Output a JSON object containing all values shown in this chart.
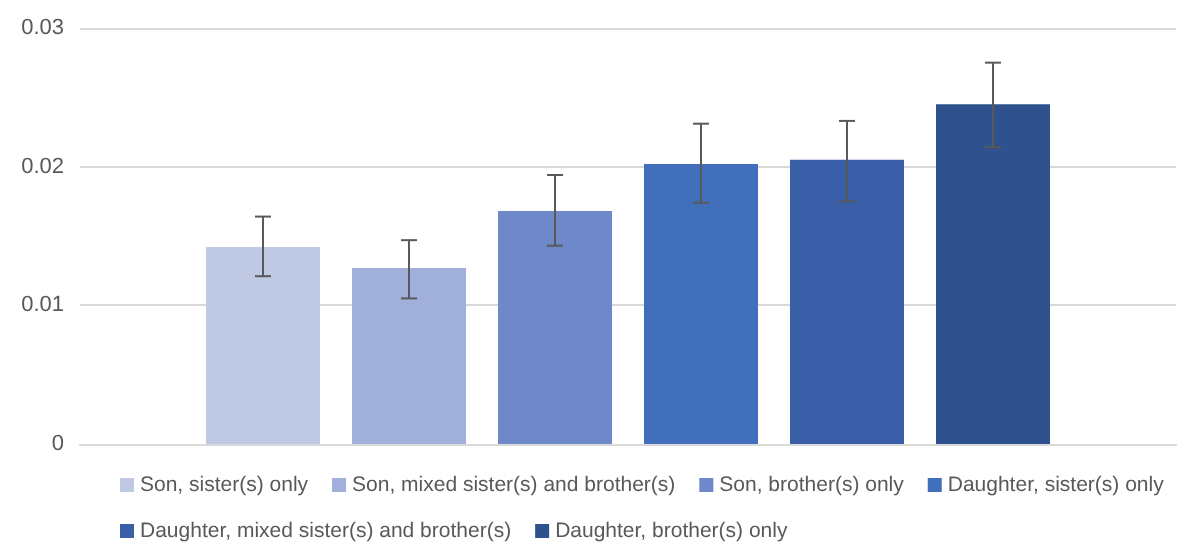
{
  "chart_data": {
    "type": "bar",
    "categories": [
      null
    ],
    "series": [
      {
        "name": "Son, sister(s) only",
        "color": "#bfc9e4",
        "values": [
          0.0142
        ],
        "errors": [
          [
            0.0121,
            0.0164
          ]
        ]
      },
      {
        "name": "Son, mixed sister(s) and brother(s)",
        "color": "#a0b0da",
        "values": [
          0.0127
        ],
        "errors": [
          [
            0.0105,
            0.0147
          ]
        ]
      },
      {
        "name": "Son, brother(s) only",
        "color": "#6e88c9",
        "values": [
          0.0168
        ],
        "errors": [
          [
            0.0143,
            0.0194
          ]
        ]
      },
      {
        "name": "Daughter, sister(s) only",
        "color": "#416fbc",
        "values": [
          0.0202
        ],
        "errors": [
          [
            0.0174,
            0.0231
          ]
        ]
      },
      {
        "name": "Daughter, mixed sister(s) and brother(s)",
        "color": "#3a5fa8",
        "values": [
          0.0205
        ],
        "errors": [
          [
            0.0175,
            0.0233
          ]
        ]
      },
      {
        "name": "Daughter, brother(s) only",
        "color": "#2f528e",
        "values": [
          0.0245
        ],
        "errors": [
          [
            0.0214,
            0.0275
          ]
        ]
      }
    ],
    "ylim": [
      0,
      0.03
    ],
    "yticks": [
      0,
      0.01,
      0.02,
      0.03
    ],
    "grid": "y",
    "legend": "bottom"
  }
}
